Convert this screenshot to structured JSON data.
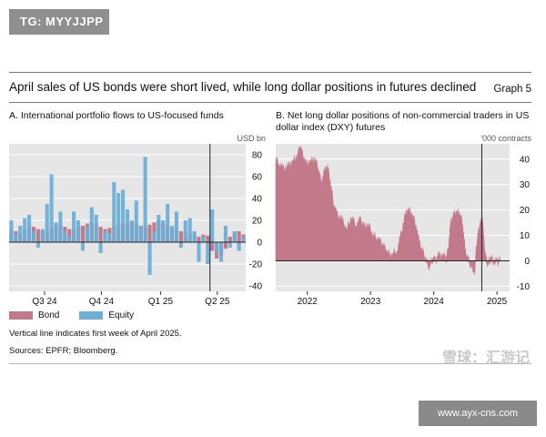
{
  "tag": "TG: MYYJJPP",
  "headline": "April sales of US bonds were short lived, while long dollar positions in futures declined",
  "graph_label": "Graph 5",
  "legend": {
    "bond": "Bond",
    "equity": "Equity"
  },
  "note": "Vertical line indicates first week of April 2025.",
  "sources": "Sources: EPFR; Bloomberg.",
  "watermark": "雪球：汇游记",
  "url": "www.ayx-cns.com",
  "colors": {
    "bond": "#c27a8a",
    "equity": "#6baed6",
    "panel_bg": "#e6e6e6",
    "line": "#222222"
  },
  "chart_data": [
    {
      "type": "bar",
      "title": "A. International portfolio flows to US-focused funds",
      "unit": "USD bn",
      "ylim": [
        -45,
        90
      ],
      "yticks": [
        80,
        60,
        40,
        20,
        0,
        -20,
        -40
      ],
      "x_labels": [
        "Q3 24",
        "Q4 24",
        "Q1 25",
        "Q2 25"
      ],
      "vertical_line_at_week": 45,
      "series": [
        {
          "name": "Bond",
          "values": [
            12,
            10,
            8,
            12,
            15,
            14,
            12,
            10,
            9,
            13,
            15,
            16,
            14,
            12,
            11,
            13,
            15,
            17,
            18,
            16,
            14,
            12,
            13,
            15,
            16,
            17,
            18,
            19,
            17,
            15,
            14,
            16,
            18,
            20,
            17,
            15,
            13,
            12,
            10,
            9,
            8,
            6,
            5,
            7,
            6,
            -8,
            -15,
            -12,
            -6,
            5,
            8,
            10,
            7
          ]
        },
        {
          "name": "Equity",
          "values": [
            20,
            8,
            15,
            22,
            25,
            10,
            -5,
            12,
            35,
            62,
            18,
            28,
            10,
            5,
            28,
            20,
            -8,
            14,
            32,
            25,
            -10,
            10,
            8,
            55,
            45,
            48,
            30,
            20,
            38,
            15,
            78,
            -30,
            10,
            25,
            20,
            35,
            15,
            28,
            -5,
            20,
            22,
            10,
            -18,
            5,
            -20,
            30,
            -10,
            -18,
            15,
            -5,
            10,
            -8,
            5
          ]
        }
      ]
    },
    {
      "type": "area",
      "title": "B. Net long dollar positions of non-commercial traders in US dollar index (DXY) futures",
      "unit": "'000 contracts",
      "ylim": [
        -12,
        46
      ],
      "yticks": [
        40,
        30,
        20,
        10,
        0,
        -10
      ],
      "x_labels": [
        "2022",
        "2023",
        "2024",
        "2025"
      ],
      "x_tick_years": [
        2022,
        2023,
        2024,
        2025
      ],
      "xlim": [
        2021.5,
        2025.2
      ],
      "vertical_line_at": 2024.76,
      "points": [
        [
          2021.5,
          40
        ],
        [
          2021.55,
          38
        ],
        [
          2021.62,
          36
        ],
        [
          2021.7,
          37
        ],
        [
          2021.77,
          39
        ],
        [
          2021.84,
          41
        ],
        [
          2021.88,
          45
        ],
        [
          2021.92,
          42
        ],
        [
          2021.97,
          38
        ],
        [
          2022.05,
          39
        ],
        [
          2022.12,
          40
        ],
        [
          2022.18,
          36
        ],
        [
          2022.22,
          30
        ],
        [
          2022.27,
          35
        ],
        [
          2022.32,
          37
        ],
        [
          2022.37,
          30
        ],
        [
          2022.42,
          22
        ],
        [
          2022.47,
          18
        ],
        [
          2022.55,
          16
        ],
        [
          2022.62,
          12
        ],
        [
          2022.7,
          17
        ],
        [
          2022.77,
          14
        ],
        [
          2022.84,
          16
        ],
        [
          2022.9,
          13
        ],
        [
          2022.97,
          14
        ],
        [
          2023.03,
          10
        ],
        [
          2023.1,
          9
        ],
        [
          2023.16,
          7
        ],
        [
          2023.22,
          5
        ],
        [
          2023.27,
          3
        ],
        [
          2023.33,
          2
        ],
        [
          2023.42,
          4
        ],
        [
          2023.48,
          10
        ],
        [
          2023.55,
          18
        ],
        [
          2023.6,
          20
        ],
        [
          2023.66,
          18
        ],
        [
          2023.72,
          14
        ],
        [
          2023.78,
          6
        ],
        [
          2023.83,
          3
        ],
        [
          2023.88,
          0
        ],
        [
          2023.93,
          -2
        ],
        [
          2023.98,
          1
        ],
        [
          2024.02,
          0
        ],
        [
          2024.08,
          2
        ],
        [
          2024.15,
          2
        ],
        [
          2024.2,
          1
        ],
        [
          2024.23,
          5
        ],
        [
          2024.27,
          15
        ],
        [
          2024.32,
          18
        ],
        [
          2024.37,
          19
        ],
        [
          2024.42,
          18
        ],
        [
          2024.46,
          14
        ],
        [
          2024.5,
          3
        ],
        [
          2024.55,
          0
        ],
        [
          2024.6,
          -2
        ],
        [
          2024.63,
          -3
        ],
        [
          2024.65,
          -4
        ],
        [
          2024.67,
          4
        ],
        [
          2024.7,
          10
        ],
        [
          2024.73,
          14
        ],
        [
          2024.76,
          16
        ],
        [
          2024.78,
          15
        ],
        [
          2024.8,
          5
        ],
        [
          2024.83,
          0
        ],
        [
          2024.86,
          -1
        ],
        [
          2024.9,
          1
        ],
        [
          2024.95,
          0
        ],
        [
          2025.0,
          -0.5
        ],
        [
          2025.05,
          0.2
        ]
      ]
    }
  ]
}
